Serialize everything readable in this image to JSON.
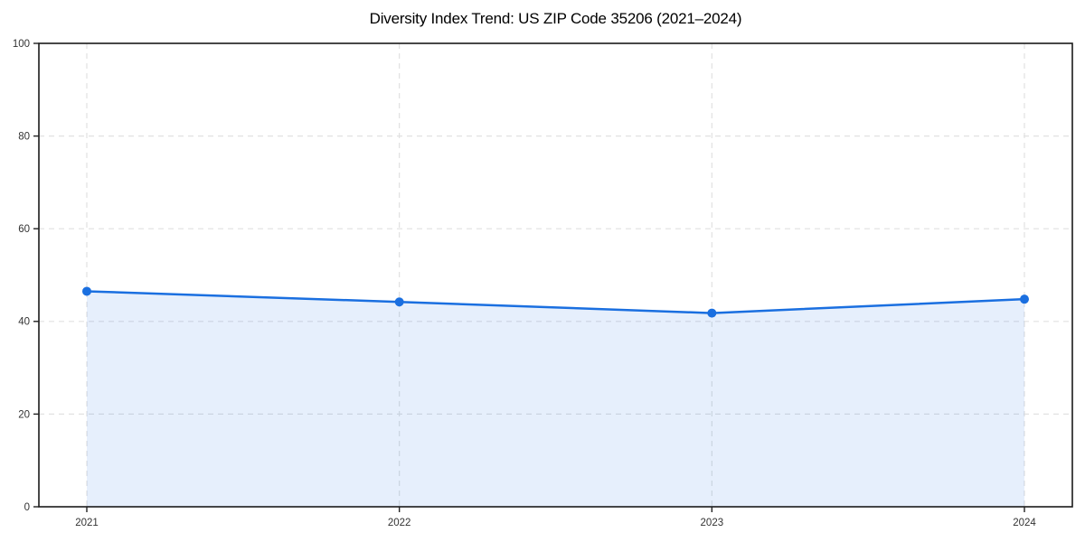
{
  "chart": {
    "title": "Diversity Index Trend: US ZIP Code 35206 (2021–2024)"
  },
  "chart_data": {
    "type": "line",
    "categories": [
      "2021",
      "2022",
      "2023",
      "2024"
    ],
    "values": [
      46.5,
      44.2,
      41.8,
      44.8
    ],
    "series_name": "Diversity Index",
    "title": "Diversity Index Trend: US ZIP Code 35206 (2021–2024)",
    "xlabel": "",
    "ylabel": "",
    "ylim": [
      0,
      100
    ],
    "yticks": [
      0,
      20,
      40,
      60,
      80,
      100
    ],
    "grid": "dashed-both-axes",
    "legend": "none",
    "area_fill": true,
    "marker": "circle",
    "colors": {
      "line": "#1a6fe0",
      "marker": "#1a6fe0",
      "fill": "rgba(26, 111, 224, 0.11)",
      "gridline": "#e1e1e1",
      "spine": "#1a1a1a",
      "tick_label": "#333333",
      "title": "#000000",
      "background": "#ffffff"
    }
  }
}
